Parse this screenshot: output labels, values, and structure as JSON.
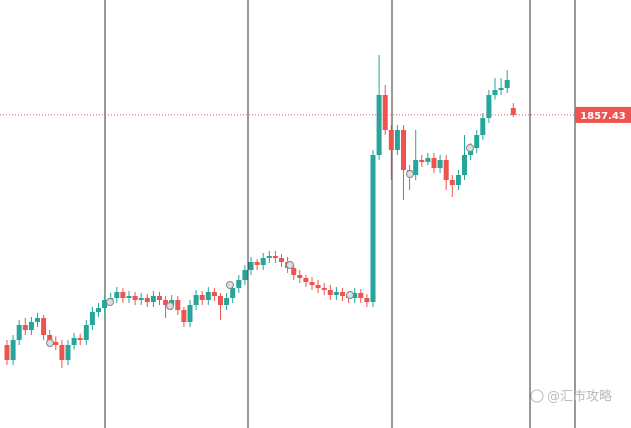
{
  "chart_data": {
    "type": "candlestick",
    "colors": {
      "up": "#26a69a",
      "down": "#ef5350"
    },
    "ylim": [
      1763.5,
      1891.9
    ],
    "last_price": 1857.43,
    "watermark": "@汇市攻略",
    "candles": [
      [
        1788.4,
        1789.9,
        1782.4,
        1783.9
      ],
      [
        1783.9,
        1791.4,
        1782.4,
        1789.9
      ],
      [
        1789.9,
        1795.9,
        1788.4,
        1794.4
      ],
      [
        1794.4,
        1796.5,
        1791.4,
        1792.9
      ],
      [
        1792.9,
        1796.8,
        1791.4,
        1795.3
      ],
      [
        1795.3,
        1798.0,
        1793.8,
        1796.5
      ],
      [
        1796.5,
        1797.4,
        1789.9,
        1791.4
      ],
      [
        1791.4,
        1792.9,
        1787.8,
        1789.3
      ],
      [
        1789.3,
        1791.0,
        1786.9,
        1788.4
      ],
      [
        1788.4,
        1789.9,
        1781.5,
        1783.9
      ],
      [
        1783.9,
        1789.9,
        1782.4,
        1788.4
      ],
      [
        1788.4,
        1792.0,
        1787.0,
        1790.5
      ],
      [
        1790.5,
        1791.8,
        1788.4,
        1789.9
      ],
      [
        1789.9,
        1795.9,
        1788.4,
        1794.4
      ],
      [
        1794.4,
        1799.8,
        1792.9,
        1798.3
      ],
      [
        1798.3,
        1801.0,
        1796.8,
        1799.5
      ],
      [
        1799.5,
        1803.4,
        1797.5,
        1801.9
      ],
      [
        1801.9,
        1804.0,
        1800.4,
        1802.5
      ],
      [
        1802.5,
        1805.8,
        1801.0,
        1804.3
      ],
      [
        1804.3,
        1805.5,
        1801.0,
        1802.5
      ],
      [
        1802.5,
        1804.6,
        1801.0,
        1803.1
      ],
      [
        1803.1,
        1804.3,
        1800.4,
        1801.9
      ],
      [
        1801.9,
        1804.0,
        1800.4,
        1802.5
      ],
      [
        1802.5,
        1803.7,
        1799.8,
        1801.3
      ],
      [
        1801.3,
        1804.6,
        1799.8,
        1803.1
      ],
      [
        1803.1,
        1804.3,
        1800.4,
        1801.9
      ],
      [
        1801.9,
        1803.1,
        1796.5,
        1800.4
      ],
      [
        1800.4,
        1803.4,
        1798.9,
        1801.9
      ],
      [
        1801.9,
        1803.1,
        1797.4,
        1798.9
      ],
      [
        1798.9,
        1799.8,
        1793.8,
        1795.3
      ],
      [
        1795.3,
        1801.9,
        1793.8,
        1800.4
      ],
      [
        1800.4,
        1804.9,
        1798.9,
        1803.4
      ],
      [
        1803.4,
        1804.6,
        1800.4,
        1801.9
      ],
      [
        1801.9,
        1805.8,
        1800.4,
        1804.3
      ],
      [
        1804.3,
        1805.5,
        1801.6,
        1803.1
      ],
      [
        1803.1,
        1804.0,
        1795.9,
        1800.4
      ],
      [
        1800.4,
        1804.0,
        1798.9,
        1802.5
      ],
      [
        1802.5,
        1807.0,
        1801.0,
        1805.5
      ],
      [
        1805.5,
        1809.4,
        1804.0,
        1807.9
      ],
      [
        1807.9,
        1812.4,
        1806.4,
        1810.9
      ],
      [
        1810.9,
        1814.8,
        1809.4,
        1813.3
      ],
      [
        1813.3,
        1814.2,
        1810.9,
        1812.4
      ],
      [
        1812.4,
        1816.0,
        1810.9,
        1814.5
      ],
      [
        1814.5,
        1816.6,
        1813.0,
        1815.1
      ],
      [
        1815.1,
        1816.6,
        1813.0,
        1814.5
      ],
      [
        1814.5,
        1815.7,
        1811.8,
        1813.3
      ],
      [
        1813.3,
        1814.8,
        1810.0,
        1811.5
      ],
      [
        1811.5,
        1812.4,
        1807.9,
        1809.4
      ],
      [
        1809.4,
        1810.9,
        1807.0,
        1808.5
      ],
      [
        1808.5,
        1809.4,
        1805.8,
        1807.3
      ],
      [
        1807.3,
        1808.8,
        1804.9,
        1806.4
      ],
      [
        1806.4,
        1807.9,
        1804.0,
        1805.5
      ],
      [
        1805.5,
        1807.0,
        1803.4,
        1804.9
      ],
      [
        1804.9,
        1806.4,
        1801.9,
        1803.4
      ],
      [
        1803.4,
        1805.8,
        1801.9,
        1804.3
      ],
      [
        1804.3,
        1805.5,
        1801.6,
        1803.1
      ],
      [
        1803.1,
        1804.6,
        1801.0,
        1802.5
      ],
      [
        1802.5,
        1805.5,
        1801.0,
        1804.0
      ],
      [
        1804.0,
        1805.2,
        1801.0,
        1802.5
      ],
      [
        1802.5,
        1803.7,
        1799.8,
        1801.3
      ],
      [
        1801.3,
        1846.9,
        1799.8,
        1845.4
      ],
      [
        1845.4,
        1875.4,
        1843.9,
        1863.4
      ],
      [
        1863.4,
        1866.4,
        1851.4,
        1852.9
      ],
      [
        1852.9,
        1854.4,
        1837.9,
        1846.9
      ],
      [
        1846.9,
        1854.4,
        1845.4,
        1852.9
      ],
      [
        1852.9,
        1854.4,
        1831.9,
        1840.9
      ],
      [
        1840.9,
        1842.4,
        1834.9,
        1839.4
      ],
      [
        1839.4,
        1852.9,
        1837.9,
        1843.9
      ],
      [
        1843.9,
        1845.4,
        1841.8,
        1843.3
      ],
      [
        1843.3,
        1846.0,
        1842.4,
        1844.5
      ],
      [
        1844.5,
        1846.0,
        1840.0,
        1841.5
      ],
      [
        1841.5,
        1845.4,
        1840.0,
        1843.9
      ],
      [
        1843.9,
        1845.4,
        1834.9,
        1837.9
      ],
      [
        1837.9,
        1839.4,
        1832.8,
        1836.4
      ],
      [
        1836.4,
        1840.9,
        1834.9,
        1839.4
      ],
      [
        1839.4,
        1851.4,
        1837.9,
        1845.4
      ],
      [
        1845.4,
        1849.0,
        1843.9,
        1847.5
      ],
      [
        1847.5,
        1852.9,
        1846.0,
        1851.4
      ],
      [
        1851.4,
        1858.0,
        1850.0,
        1856.5
      ],
      [
        1856.5,
        1864.9,
        1855.0,
        1863.4
      ],
      [
        1863.4,
        1868.5,
        1862.0,
        1864.9
      ],
      [
        1864.9,
        1868.5,
        1863.4,
        1865.5
      ],
      [
        1865.5,
        1870.9,
        1864.0,
        1867.9
      ],
      [
        1859.5,
        1861.0,
        1856.8,
        1857.4
      ]
    ]
  }
}
